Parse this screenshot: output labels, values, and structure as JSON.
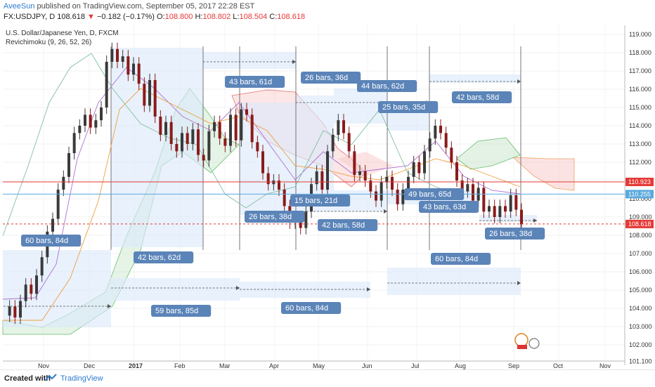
{
  "header": {
    "author": "AveeSun",
    "published_text": " published on TradingView.com, September 05, 2017 22:28 EST",
    "symbol_text": "FX:USDJPY, D  108.618",
    "change_text": "−0.182 (−0.17%)",
    "open_label": "O:",
    "open_value": "108.800",
    "high_label": "H:",
    "high_value": "108.802",
    "low_label": "L:",
    "low_value": "108.504",
    "close_label": "C:",
    "close_value": "108.618"
  },
  "legend": {
    "title": "U.S. Dollar/Japanese Yen, D, FXCM",
    "indicator": "Revichimoku (9, 26, 52, 26)"
  },
  "footer": {
    "created_with": "Created with",
    "brand": "TradingView"
  },
  "colors": {
    "bull": "#3a3a3a",
    "bear": "#8b1a1a",
    "kumo_green": "#2e7d32",
    "kumo_red": "#c62828",
    "label_bg": "#5b84b8",
    "range_fill": "#dce9fb",
    "hline_red": "#e53935",
    "hline_blue": "#5aa9dd"
  },
  "chart_data": {
    "type": "candlestick",
    "title": "U.S. Dollar/Japanese Yen, D, FXCM",
    "y_axis": {
      "ylim": [
        100.5,
        119.5
      ],
      "ticks": [
        "119.000",
        "118.000",
        "117.000",
        "116.000",
        "115.000",
        "114.000",
        "113.000",
        "112.000",
        "111.000",
        "110.000",
        "109.000",
        "108.000",
        "107.000",
        "106.000",
        "105.000",
        "104.000",
        "103.000",
        "102.000",
        "101.100"
      ]
    },
    "x_axis": {
      "ticks": [
        "Nov",
        "Dec",
        "2017",
        "Feb",
        "Mar",
        "Apr",
        "May",
        "Jun",
        "Jul",
        "Aug",
        "Sep",
        "Oct",
        "Nov"
      ]
    },
    "price_tags": [
      {
        "value": 110.923,
        "label": "110.923",
        "color": "#e53935"
      },
      {
        "value": 110.255,
        "label": "110.255",
        "color": "#5aa9dd"
      },
      {
        "value": 108.618,
        "label": "108.618",
        "color": "#e53935"
      }
    ],
    "horizontal_lines": [
      {
        "value": 110.923,
        "style": "solid",
        "color": "#e53935"
      },
      {
        "value": 110.255,
        "style": "solid",
        "color": "#5aa9dd"
      },
      {
        "value": 108.618,
        "style": "dashed",
        "color": "#e53935"
      }
    ],
    "annotations": [
      {
        "text": "60 bars, 84d"
      },
      {
        "text": "42 bars, 62d"
      },
      {
        "text": "59 bars, 85d"
      },
      {
        "text": "43 bars, 61d"
      },
      {
        "text": "26 bars, 36d"
      },
      {
        "text": "44 bars, 62d"
      },
      {
        "text": "25 bars, 35d"
      },
      {
        "text": "42 bars, 58d"
      },
      {
        "text": "26 bars, 38d"
      },
      {
        "text": "15 bars, 21d"
      },
      {
        "text": "42 bars, 58d"
      },
      {
        "text": "49 bars, 65d"
      },
      {
        "text": "43 bars, 63d"
      },
      {
        "text": "26 bars, 38d"
      },
      {
        "text": "60 bars, 84d"
      },
      {
        "text": "60 bars, 84d"
      }
    ],
    "price_path": [
      [
        0,
        103.6
      ],
      [
        4,
        104.1
      ],
      [
        8,
        103.5
      ],
      [
        12,
        104.4
      ],
      [
        16,
        105.3
      ],
      [
        20,
        104.8
      ],
      [
        24,
        105.8
      ],
      [
        28,
        106.8
      ],
      [
        32,
        108.2
      ],
      [
        36,
        108.9
      ],
      [
        40,
        110.5
      ],
      [
        44,
        111.2
      ],
      [
        48,
        112.5
      ],
      [
        52,
        113.6
      ],
      [
        56,
        114.0
      ],
      [
        60,
        114.6
      ],
      [
        64,
        113.9
      ],
      [
        68,
        114.3
      ],
      [
        72,
        115.0
      ],
      [
        76,
        117.5
      ],
      [
        80,
        118.2
      ],
      [
        84,
        117.5
      ],
      [
        88,
        117.8
      ],
      [
        92,
        116.8
      ],
      [
        96,
        117.4
      ],
      [
        100,
        116.3
      ],
      [
        104,
        115.1
      ],
      [
        108,
        116.5
      ],
      [
        112,
        114.5
      ],
      [
        116,
        113.5
      ],
      [
        120,
        114.2
      ],
      [
        124,
        113.0
      ],
      [
        128,
        112.6
      ],
      [
        132,
        113.6
      ],
      [
        136,
        113.0
      ],
      [
        140,
        113.8
      ],
      [
        144,
        112.4
      ],
      [
        148,
        112.1
      ],
      [
        152,
        113.7
      ],
      [
        156,
        114.2
      ],
      [
        160,
        113.3
      ],
      [
        164,
        112.9
      ],
      [
        168,
        114.6
      ],
      [
        172,
        113.2
      ],
      [
        176,
        114.9
      ],
      [
        180,
        114.6
      ],
      [
        184,
        113.1
      ],
      [
        188,
        112.6
      ],
      [
        192,
        111.4
      ],
      [
        196,
        110.8
      ],
      [
        200,
        111.0
      ],
      [
        204,
        110.5
      ],
      [
        208,
        109.6
      ],
      [
        212,
        108.7
      ],
      [
        216,
        109.0
      ],
      [
        220,
        108.4
      ],
      [
        224,
        109.3
      ],
      [
        228,
        110.8
      ],
      [
        232,
        111.5
      ],
      [
        236,
        110.5
      ],
      [
        240,
        112.6
      ],
      [
        244,
        113.5
      ],
      [
        248,
        114.3
      ],
      [
        252,
        113.6
      ],
      [
        256,
        112.6
      ],
      [
        260,
        111.3
      ],
      [
        264,
        111.5
      ],
      [
        268,
        111.0
      ],
      [
        272,
        110.4
      ],
      [
        276,
        109.9
      ],
      [
        280,
        110.9
      ],
      [
        284,
        111.2
      ],
      [
        288,
        110.5
      ],
      [
        292,
        109.7
      ],
      [
        296,
        110.5
      ],
      [
        300,
        111.2
      ],
      [
        304,
        112.0
      ],
      [
        308,
        111.4
      ],
      [
        312,
        112.6
      ],
      [
        316,
        113.3
      ],
      [
        320,
        114.0
      ],
      [
        324,
        113.6
      ],
      [
        328,
        112.8
      ],
      [
        332,
        112.0
      ],
      [
        336,
        111.0
      ],
      [
        340,
        110.4
      ],
      [
        344,
        110.8
      ],
      [
        348,
        109.9
      ],
      [
        352,
        110.6
      ],
      [
        356,
        109.3
      ],
      [
        360,
        109.6
      ],
      [
        364,
        109.0
      ],
      [
        368,
        109.6
      ],
      [
        372,
        109.3
      ],
      [
        376,
        110.2
      ],
      [
        380,
        109.4
      ],
      [
        384,
        108.6
      ]
    ]
  }
}
